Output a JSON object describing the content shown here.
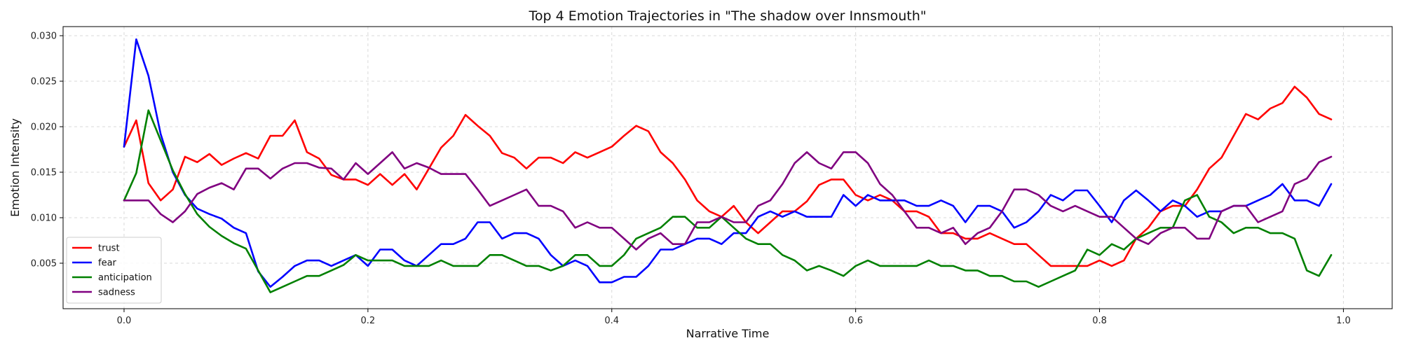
{
  "chart_data": {
    "type": "line",
    "title": "Top 4 Emotion Trajectories in \"The shadow over Innsmouth\"",
    "xlabel": "Narrative Time",
    "ylabel": "Emotion Intensity",
    "xlim": [
      -0.05,
      1.04
    ],
    "ylim": [
      0.0,
      0.031
    ],
    "xticks": [
      0.0,
      0.2,
      0.4,
      0.6,
      0.8,
      1.0
    ],
    "xtick_labels": [
      "0.0",
      "0.2",
      "0.4",
      "0.6",
      "0.8",
      "1.0"
    ],
    "yticks": [
      0.005,
      0.01,
      0.015,
      0.02,
      0.025,
      0.03
    ],
    "ytick_labels": [
      "0.005",
      "0.010",
      "0.015",
      "0.020",
      "0.025",
      "0.030"
    ],
    "grid": true,
    "legend_position": "lower-left",
    "x": [
      0.0,
      0.01,
      0.02,
      0.03,
      0.04,
      0.05,
      0.06,
      0.07,
      0.08,
      0.09,
      0.1,
      0.11,
      0.12,
      0.13,
      0.14,
      0.15,
      0.16,
      0.17,
      0.18,
      0.19,
      0.2,
      0.21,
      0.22,
      0.23,
      0.24,
      0.25,
      0.26,
      0.27,
      0.28,
      0.29,
      0.3,
      0.31,
      0.32,
      0.33,
      0.34,
      0.35,
      0.36,
      0.37,
      0.38,
      0.39,
      0.4,
      0.41,
      0.42,
      0.43,
      0.44,
      0.45,
      0.46,
      0.47,
      0.48,
      0.49,
      0.5,
      0.51,
      0.52,
      0.53,
      0.54,
      0.55,
      0.56,
      0.57,
      0.58,
      0.59,
      0.6,
      0.61,
      0.62,
      0.63,
      0.64,
      0.65,
      0.66,
      0.67,
      0.68,
      0.69,
      0.7,
      0.71,
      0.72,
      0.73,
      0.74,
      0.75,
      0.76,
      0.77,
      0.78,
      0.79,
      0.8,
      0.81,
      0.82,
      0.83,
      0.84,
      0.85,
      0.86,
      0.87,
      0.88,
      0.89,
      0.9,
      0.91,
      0.92,
      0.93,
      0.94,
      0.95,
      0.96,
      0.97,
      0.98,
      0.99
    ],
    "series": [
      {
        "name": "trust",
        "color": "#ff0000",
        "values": [
          0.0178,
          0.0207,
          0.0138,
          0.0119,
          0.0131,
          0.0167,
          0.0161,
          0.017,
          0.0158,
          0.0165,
          0.0171,
          0.0165,
          0.019,
          0.019,
          0.0207,
          0.0172,
          0.0165,
          0.0147,
          0.0142,
          0.0142,
          0.0136,
          0.0148,
          0.0136,
          0.0148,
          0.0131,
          0.0154,
          0.0177,
          0.019,
          0.0213,
          0.0201,
          0.019,
          0.0171,
          0.0166,
          0.0154,
          0.0166,
          0.0166,
          0.016,
          0.0172,
          0.0166,
          0.0172,
          0.0178,
          0.019,
          0.0201,
          0.0195,
          0.0172,
          0.016,
          0.0142,
          0.0119,
          0.0107,
          0.0101,
          0.0113,
          0.0095,
          0.0083,
          0.0095,
          0.0107,
          0.0107,
          0.0118,
          0.0136,
          0.0142,
          0.0142,
          0.0125,
          0.0119,
          0.0125,
          0.0119,
          0.0107,
          0.0107,
          0.0101,
          0.0083,
          0.0083,
          0.0077,
          0.0077,
          0.0083,
          0.0077,
          0.0071,
          0.0071,
          0.0059,
          0.0047,
          0.0047,
          0.0047,
          0.0047,
          0.0053,
          0.0047,
          0.0053,
          0.0077,
          0.0089,
          0.0107,
          0.0113,
          0.0113,
          0.0131,
          0.0154,
          0.0166,
          0.019,
          0.0214,
          0.0208,
          0.022,
          0.0226,
          0.0244,
          0.0232,
          0.0214,
          0.0208
        ]
      },
      {
        "name": "fear",
        "color": "#0000ff",
        "values": [
          0.0178,
          0.0296,
          0.0256,
          0.0192,
          0.015,
          0.0125,
          0.011,
          0.0104,
          0.0099,
          0.0089,
          0.0083,
          0.0041,
          0.0024,
          0.0035,
          0.0047,
          0.0053,
          0.0053,
          0.0047,
          0.0053,
          0.0059,
          0.0047,
          0.0065,
          0.0065,
          0.0053,
          0.0047,
          0.0059,
          0.0071,
          0.0071,
          0.0077,
          0.0095,
          0.0095,
          0.0077,
          0.0083,
          0.0083,
          0.0077,
          0.0059,
          0.0047,
          0.0053,
          0.0047,
          0.0029,
          0.0029,
          0.0035,
          0.0035,
          0.0047,
          0.0065,
          0.0065,
          0.0071,
          0.0077,
          0.0077,
          0.0071,
          0.0083,
          0.0083,
          0.0101,
          0.0107,
          0.0101,
          0.0107,
          0.0101,
          0.0101,
          0.0101,
          0.0125,
          0.0113,
          0.0125,
          0.0119,
          0.0119,
          0.0119,
          0.0113,
          0.0113,
          0.0119,
          0.0113,
          0.0095,
          0.0113,
          0.0113,
          0.0107,
          0.0089,
          0.0095,
          0.0107,
          0.0125,
          0.0119,
          0.013,
          0.013,
          0.0113,
          0.0095,
          0.0119,
          0.013,
          0.0119,
          0.0107,
          0.0119,
          0.0113,
          0.0101,
          0.0107,
          0.0107,
          0.0113,
          0.0113,
          0.0119,
          0.0125,
          0.0137,
          0.0119,
          0.0119,
          0.0113,
          0.0137
        ]
      },
      {
        "name": "anticipation",
        "color": "#008000",
        "values": [
          0.0119,
          0.0149,
          0.0218,
          0.0185,
          0.0152,
          0.0126,
          0.0104,
          0.009,
          0.008,
          0.0072,
          0.0066,
          0.0042,
          0.0018,
          0.0024,
          0.003,
          0.0036,
          0.0036,
          0.0042,
          0.0048,
          0.0059,
          0.0053,
          0.0053,
          0.0053,
          0.0047,
          0.0047,
          0.0047,
          0.0053,
          0.0047,
          0.0047,
          0.0047,
          0.0059,
          0.0059,
          0.0053,
          0.0047,
          0.0047,
          0.0042,
          0.0047,
          0.0059,
          0.0059,
          0.0047,
          0.0047,
          0.0059,
          0.0077,
          0.0083,
          0.0089,
          0.0101,
          0.0101,
          0.0089,
          0.0089,
          0.0101,
          0.0089,
          0.0077,
          0.0071,
          0.0071,
          0.0059,
          0.0053,
          0.0042,
          0.0047,
          0.0042,
          0.0036,
          0.0047,
          0.0053,
          0.0047,
          0.0047,
          0.0047,
          0.0047,
          0.0053,
          0.0047,
          0.0047,
          0.0042,
          0.0042,
          0.0036,
          0.0036,
          0.003,
          0.003,
          0.0024,
          0.003,
          0.0036,
          0.0042,
          0.0065,
          0.0059,
          0.0071,
          0.0065,
          0.0077,
          0.0083,
          0.0089,
          0.0089,
          0.0119,
          0.0125,
          0.0101,
          0.0095,
          0.0083,
          0.0089,
          0.0089,
          0.0083,
          0.0083,
          0.0077,
          0.0042,
          0.0036,
          0.0059
        ]
      },
      {
        "name": "sadness",
        "color": "#800080",
        "values": [
          0.0119,
          0.0119,
          0.0119,
          0.0104,
          0.0095,
          0.0107,
          0.0126,
          0.0133,
          0.0138,
          0.0131,
          0.0154,
          0.0154,
          0.0143,
          0.0154,
          0.016,
          0.016,
          0.0155,
          0.0154,
          0.0142,
          0.016,
          0.0148,
          0.016,
          0.0172,
          0.0154,
          0.016,
          0.0155,
          0.0148,
          0.0148,
          0.0148,
          0.0131,
          0.0113,
          0.0119,
          0.0125,
          0.0131,
          0.0113,
          0.0113,
          0.0107,
          0.0089,
          0.0095,
          0.0089,
          0.0089,
          0.0077,
          0.0065,
          0.0077,
          0.0083,
          0.0071,
          0.0071,
          0.0095,
          0.0095,
          0.0101,
          0.0095,
          0.0095,
          0.0113,
          0.0119,
          0.0137,
          0.016,
          0.0172,
          0.016,
          0.0154,
          0.0172,
          0.0172,
          0.016,
          0.0137,
          0.0125,
          0.0107,
          0.0089,
          0.0089,
          0.0083,
          0.0089,
          0.0071,
          0.0083,
          0.0089,
          0.0107,
          0.0131,
          0.0131,
          0.0125,
          0.0113,
          0.0107,
          0.0113,
          0.0107,
          0.0101,
          0.0101,
          0.0089,
          0.0077,
          0.0071,
          0.0083,
          0.0089,
          0.0089,
          0.0077,
          0.0077,
          0.0107,
          0.0113,
          0.0113,
          0.0095,
          0.0101,
          0.0107,
          0.0137,
          0.0143,
          0.0161,
          0.0167
        ]
      }
    ]
  }
}
